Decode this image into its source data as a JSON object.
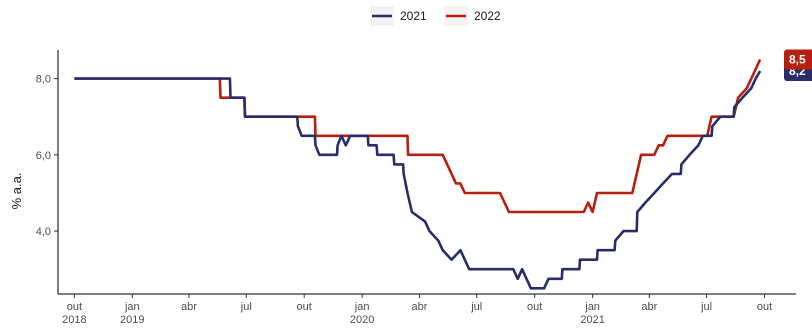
{
  "chart_data": {
    "type": "line",
    "title": "",
    "xlabel": "",
    "ylabel": "% a.a.",
    "ylim": [
      2.35,
      8.75
    ],
    "xlim": [
      "2018-09-05",
      "2021-11-20"
    ],
    "grid": false,
    "legend_position": "top",
    "y_ticks": [
      {
        "value": 4.0,
        "label": "4,0"
      },
      {
        "value": 6.0,
        "label": "6,0"
      },
      {
        "value": 8.0,
        "label": "8,0"
      }
    ],
    "x_ticks": [
      {
        "date": "2018-10-01",
        "line1": "out",
        "line2": "2018"
      },
      {
        "date": "2019-01-01",
        "line1": "jan",
        "line2": "2019"
      },
      {
        "date": "2019-04-01",
        "line1": "abr",
        "line2": ""
      },
      {
        "date": "2019-07-01",
        "line1": "jul",
        "line2": ""
      },
      {
        "date": "2019-10-01",
        "line1": "out",
        "line2": ""
      },
      {
        "date": "2020-01-01",
        "line1": "jan",
        "line2": "2020"
      },
      {
        "date": "2020-04-01",
        "line1": "abr",
        "line2": ""
      },
      {
        "date": "2020-07-01",
        "line1": "jul",
        "line2": ""
      },
      {
        "date": "2020-10-01",
        "line1": "out",
        "line2": ""
      },
      {
        "date": "2021-01-01",
        "line1": "jan",
        "line2": "2021"
      },
      {
        "date": "2021-04-01",
        "line1": "abr",
        "line2": ""
      },
      {
        "date": "2021-07-01",
        "line1": "jul",
        "line2": ""
      },
      {
        "date": "2021-10-01",
        "line1": "out",
        "line2": ""
      }
    ],
    "series": [
      {
        "name": "2021",
        "color": "#2b2d6b",
        "end_label": "8,2",
        "points": [
          [
            "2018-10-01",
            8.0
          ],
          [
            "2019-05-28",
            8.0
          ],
          [
            "2019-06-05",
            8.0
          ],
          [
            "2019-06-06",
            7.5
          ],
          [
            "2019-06-28",
            7.5
          ],
          [
            "2019-06-29",
            7.0
          ],
          [
            "2019-09-20",
            7.0
          ],
          [
            "2019-09-21",
            6.75
          ],
          [
            "2019-09-27",
            6.5
          ],
          [
            "2019-10-18",
            6.5
          ],
          [
            "2019-10-19",
            6.25
          ],
          [
            "2019-10-25",
            6.0
          ],
          [
            "2019-11-22",
            6.0
          ],
          [
            "2019-11-23",
            6.25
          ],
          [
            "2019-11-29",
            6.5
          ],
          [
            "2019-12-06",
            6.25
          ],
          [
            "2019-12-13",
            6.5
          ],
          [
            "2020-01-10",
            6.5
          ],
          [
            "2020-01-11",
            6.25
          ],
          [
            "2020-01-24",
            6.25
          ],
          [
            "2020-01-25",
            6.0
          ],
          [
            "2020-02-20",
            6.0
          ],
          [
            "2020-02-21",
            5.75
          ],
          [
            "2020-03-06",
            5.75
          ],
          [
            "2020-03-07",
            5.5
          ],
          [
            "2020-03-13",
            5.0
          ],
          [
            "2020-03-20",
            4.5
          ],
          [
            "2020-04-10",
            4.25
          ],
          [
            "2020-04-17",
            4.0
          ],
          [
            "2020-05-01",
            3.75
          ],
          [
            "2020-05-08",
            3.5
          ],
          [
            "2020-05-22",
            3.25
          ],
          [
            "2020-06-05",
            3.5
          ],
          [
            "2020-06-12",
            3.25
          ],
          [
            "2020-06-19",
            3.0
          ],
          [
            "2020-08-28",
            3.0
          ],
          [
            "2020-09-04",
            2.75
          ],
          [
            "2020-09-11",
            3.0
          ],
          [
            "2020-09-18",
            2.75
          ],
          [
            "2020-09-25",
            2.5
          ],
          [
            "2020-10-16",
            2.5
          ],
          [
            "2020-10-23",
            2.75
          ],
          [
            "2020-11-13",
            2.75
          ],
          [
            "2020-11-14",
            3.0
          ],
          [
            "2020-12-11",
            3.0
          ],
          [
            "2020-12-12",
            3.25
          ],
          [
            "2021-01-08",
            3.25
          ],
          [
            "2021-01-09",
            3.5
          ],
          [
            "2021-02-05",
            3.5
          ],
          [
            "2021-02-06",
            3.75
          ],
          [
            "2021-02-19",
            4.0
          ],
          [
            "2021-03-12",
            4.0
          ],
          [
            "2021-03-13",
            4.5
          ],
          [
            "2021-03-26",
            4.75
          ],
          [
            "2021-04-09",
            5.0
          ],
          [
            "2021-04-23",
            5.25
          ],
          [
            "2021-05-07",
            5.5
          ],
          [
            "2021-05-21",
            5.5
          ],
          [
            "2021-05-22",
            5.75
          ],
          [
            "2021-06-04",
            6.0
          ],
          [
            "2021-06-18",
            6.25
          ],
          [
            "2021-06-25",
            6.5
          ],
          [
            "2021-07-09",
            6.5
          ],
          [
            "2021-07-10",
            6.75
          ],
          [
            "2021-07-23",
            7.0
          ],
          [
            "2021-08-13",
            7.0
          ],
          [
            "2021-08-14",
            7.25
          ],
          [
            "2021-08-27",
            7.5
          ],
          [
            "2021-09-10",
            7.75
          ],
          [
            "2021-09-17",
            8.0
          ],
          [
            "2021-09-24",
            8.2
          ]
        ]
      },
      {
        "name": "2022",
        "color": "#b5200f",
        "end_label": "8,5",
        "points": [
          [
            "2018-10-01",
            8.0
          ],
          [
            "2019-05-20",
            8.0
          ],
          [
            "2019-05-21",
            7.5
          ],
          [
            "2019-06-28",
            7.5
          ],
          [
            "2019-06-29",
            7.0
          ],
          [
            "2019-10-18",
            7.0
          ],
          [
            "2019-10-19",
            6.5
          ],
          [
            "2020-03-13",
            6.5
          ],
          [
            "2020-03-14",
            6.0
          ],
          [
            "2020-05-08",
            6.0
          ],
          [
            "2020-05-15",
            5.75
          ],
          [
            "2020-05-22",
            5.5
          ],
          [
            "2020-05-29",
            5.25
          ],
          [
            "2020-06-05",
            5.25
          ],
          [
            "2020-06-12",
            5.0
          ],
          [
            "2020-08-07",
            5.0
          ],
          [
            "2020-08-14",
            4.75
          ],
          [
            "2020-08-21",
            4.5
          ],
          [
            "2020-12-18",
            4.5
          ],
          [
            "2020-12-25",
            4.75
          ],
          [
            "2021-01-01",
            4.5
          ],
          [
            "2021-01-08",
            5.0
          ],
          [
            "2021-03-05",
            5.0
          ],
          [
            "2021-03-12",
            5.5
          ],
          [
            "2021-03-19",
            6.0
          ],
          [
            "2021-04-09",
            6.0
          ],
          [
            "2021-04-16",
            6.25
          ],
          [
            "2021-04-23",
            6.25
          ],
          [
            "2021-04-30",
            6.5
          ],
          [
            "2021-07-02",
            6.5
          ],
          [
            "2021-07-09",
            7.0
          ],
          [
            "2021-08-13",
            7.0
          ],
          [
            "2021-08-20",
            7.5
          ],
          [
            "2021-09-03",
            7.75
          ],
          [
            "2021-09-10",
            8.0
          ],
          [
            "2021-09-17",
            8.25
          ],
          [
            "2021-09-24",
            8.5
          ]
        ]
      }
    ]
  }
}
